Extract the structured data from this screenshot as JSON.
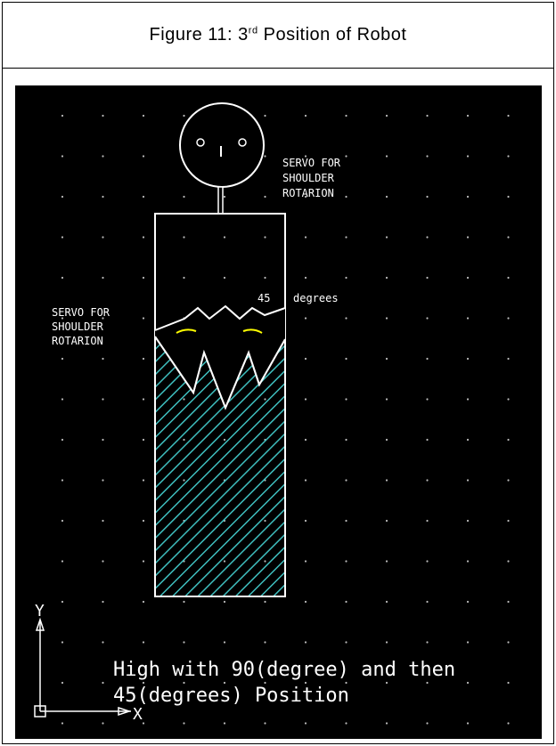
{
  "caption": {
    "prefix": "Figure 11: 3",
    "superscript": "rd",
    "suffix": " Position of Robot"
  },
  "diagram": {
    "label_top_line1": "SERVO FOR",
    "label_top_line2": "SHOULDER",
    "label_top_line3": "ROTARION",
    "label_left_line1": "SERVO FOR",
    "label_left_line2": "SHOULDER",
    "label_left_line3": "ROTARION",
    "angle_value": "45",
    "angle_unit": "degrees",
    "note_line1": "High with 90(degree) and then",
    "note_line2": "45(degrees) Position",
    "axis_y": "Y",
    "axis_x": "X",
    "colors": {
      "background": "#000000",
      "line": "#ffffff",
      "hatch": "#3fbfbf",
      "arc": "#ffff00",
      "grid_dot": "#bdbdbd"
    }
  }
}
